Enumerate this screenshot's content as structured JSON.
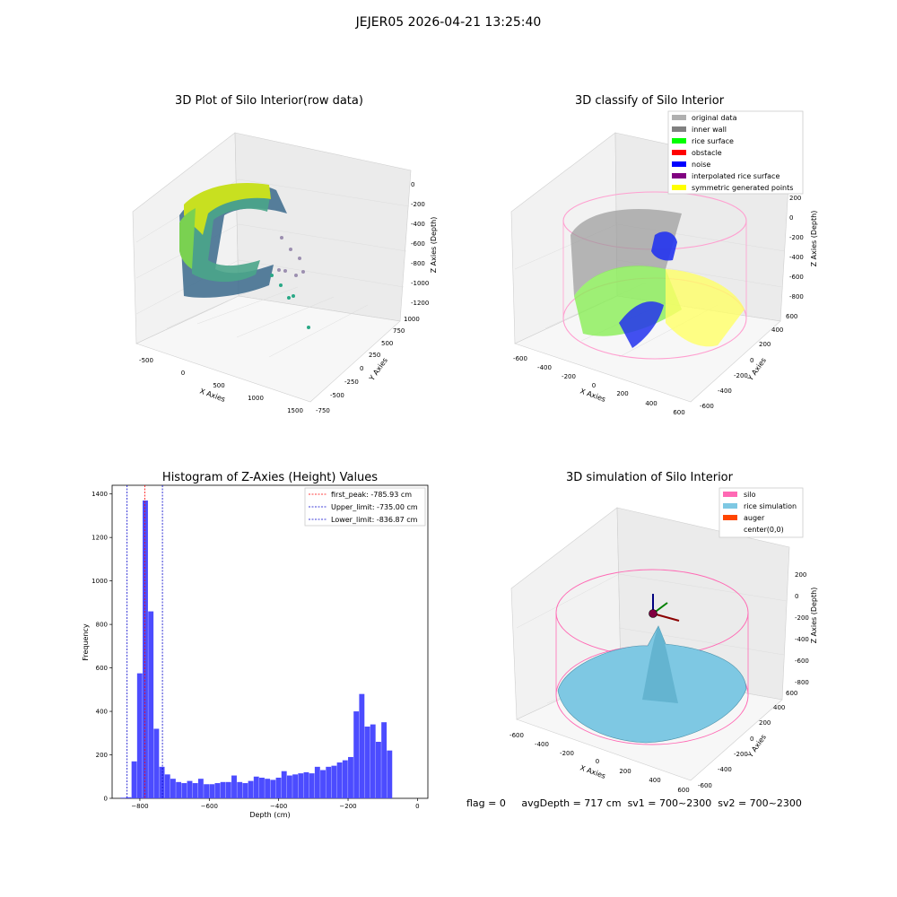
{
  "suptitle": "JEJER05 2026-04-21 13:25:40",
  "status": {
    "flag": "flag = 0",
    "avg_depth": "avgDepth = 717 cm",
    "sv1": "sv1 = 700~2300",
    "sv2": "sv2 = 700~2300"
  },
  "colors": {
    "histogram_bar": "#4c4cff",
    "peak_line": "#ff0000",
    "limit_line": "#0000cc",
    "original": "#b0b0b0",
    "inner_wall": "#808080",
    "rice_surface": "#00ff00",
    "obstacle": "#ff0000",
    "noise": "#0000ff",
    "interpolated": "#800080",
    "symmetric": "#ffff00",
    "silo": "#ff69b4",
    "rice_sim": "#7ec8e3",
    "auger": "#ff4500"
  },
  "plot1": {
    "title": "3D Plot of Silo Interior(row data)",
    "xlabel": "X Axies",
    "ylabel": "Y Axies",
    "zlabel": "Z Axies (Depth)",
    "xticks": [
      "-500",
      "0",
      "500",
      "1000",
      "1500"
    ],
    "yticks": [
      "-750",
      "-500",
      "-250",
      "0",
      "250",
      "500",
      "750",
      "1000"
    ],
    "zticks": [
      "0",
      "-200",
      "-400",
      "-600",
      "-800",
      "-1000",
      "-1200"
    ]
  },
  "plot2": {
    "title": "3D classify of Silo Interior",
    "xlabel": "X Axies",
    "ylabel": "Y Axies",
    "zlabel": "Z Axies (Depth)",
    "xticks": [
      "-600",
      "-400",
      "-200",
      "0",
      "200",
      "400",
      "600"
    ],
    "yticks": [
      "-600",
      "-400",
      "-200",
      "0",
      "200",
      "400",
      "600"
    ],
    "zticks": [
      "200",
      "0",
      "-200",
      "-400",
      "-600",
      "-800"
    ],
    "legend": [
      {
        "label": "original data",
        "color": "#b0b0b0"
      },
      {
        "label": "inner wall",
        "color": "#808080"
      },
      {
        "label": "rice surface",
        "color": "#00ff00"
      },
      {
        "label": "obstacle",
        "color": "#ff0000"
      },
      {
        "label": "noise",
        "color": "#0000ff"
      },
      {
        "label": "interpolated rice surface",
        "color": "#800080"
      },
      {
        "label": "symmetric generated points",
        "color": "#ffff00"
      }
    ]
  },
  "plot4": {
    "title": "3D simulation of Silo Interior",
    "xlabel": "X Axies",
    "ylabel": "Y Axies",
    "zlabel": "Z Axies (Depth)",
    "xticks": [
      "-600",
      "-400",
      "-200",
      "0",
      "200",
      "400",
      "600"
    ],
    "yticks": [
      "-600",
      "-400",
      "-200",
      "0",
      "200",
      "400",
      "600"
    ],
    "zticks": [
      "200",
      "0",
      "-200",
      "-400",
      "-600",
      "-800"
    ],
    "legend": [
      {
        "label": "silo",
        "color": "#ff69b4"
      },
      {
        "label": "rice simulation",
        "color": "#7ec8e3"
      },
      {
        "label": "auger",
        "color": "#ff4500"
      },
      {
        "label": "center(0,0)",
        "color": ""
      }
    ]
  },
  "chart_data": [
    {
      "type": "histogram",
      "title": "Histogram of Z-Axies (Height) Values",
      "xlabel": "Depth (cm)",
      "ylabel": "Frequency",
      "xlim": [
        -880,
        30
      ],
      "ylim": [
        0,
        1440
      ],
      "xticks": [
        -800,
        -600,
        -400,
        -200,
        0
      ],
      "yticks": [
        0,
        200,
        400,
        600,
        800,
        1000,
        1200,
        1400
      ],
      "bin_width": 16,
      "bins_start": [
        -856,
        -840,
        -824,
        -808,
        -792,
        -776,
        -760,
        -744,
        -728,
        -712,
        -696,
        -680,
        -664,
        -648,
        -632,
        -616,
        -600,
        -584,
        -568,
        -552,
        -536,
        -520,
        -504,
        -488,
        -472,
        -456,
        -440,
        -424,
        -408,
        -392,
        -376,
        -360,
        -344,
        -328,
        -312,
        -296,
        -280,
        -264,
        -248,
        -232,
        -216,
        -200,
        -184,
        -168,
        -152,
        -136,
        -120,
        -104,
        -88,
        -72,
        -56,
        -40,
        -24,
        -8
      ],
      "values": [
        3,
        5,
        170,
        575,
        1370,
        860,
        320,
        145,
        110,
        90,
        75,
        70,
        80,
        70,
        90,
        65,
        65,
        70,
        75,
        75,
        105,
        75,
        70,
        80,
        100,
        95,
        90,
        85,
        95,
        125,
        105,
        110,
        115,
        120,
        115,
        145,
        130,
        145,
        150,
        165,
        175,
        190,
        400,
        480,
        330,
        340,
        260,
        350,
        220,
        0,
        0,
        0,
        0,
        0
      ],
      "vlines": [
        {
          "name": "first_peak: -785.93 cm",
          "x": -785.93,
          "color": "#ff0000"
        },
        {
          "name": "Upper_limit: -735.00 cm",
          "x": -735.0,
          "color": "#0000cc"
        },
        {
          "name": "Lower_limit: -836.87 cm",
          "x": -836.87,
          "color": "#0000cc"
        }
      ],
      "legend_position": "upper right"
    }
  ]
}
